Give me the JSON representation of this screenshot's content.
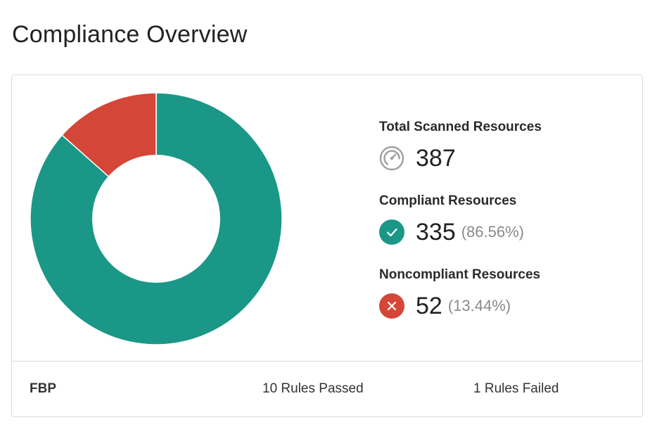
{
  "page": {
    "title": "Compliance Overview"
  },
  "summary": {
    "total": {
      "label": "Total Scanned Resources",
      "value": "387",
      "icon": "gauge-icon"
    },
    "compliant": {
      "label": "Compliant Resources",
      "value": "335",
      "percent": "(86.56%)",
      "icon": "check-circle-icon"
    },
    "noncompliant": {
      "label": "Noncompliant Resources",
      "value": "52",
      "percent": "(13.44%)",
      "icon": "x-circle-icon"
    }
  },
  "chart_data": {
    "type": "pie",
    "categories": [
      "Compliant",
      "Noncompliant"
    ],
    "values": [
      335,
      52
    ],
    "colors": [
      "#1a9787",
      "#d44637"
    ]
  },
  "footer": {
    "name": "FBP",
    "passed": "10 Rules Passed",
    "failed": "1 Rules Failed"
  },
  "colors": {
    "compliant": "#1a9787",
    "noncompliant": "#d44637",
    "gauge": "#9e9e9e"
  }
}
